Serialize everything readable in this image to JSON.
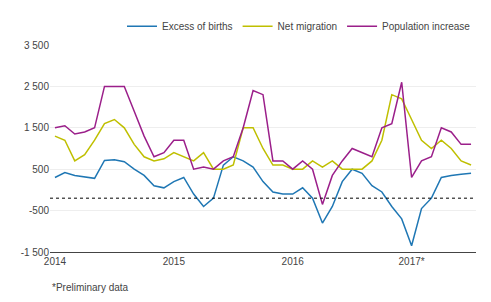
{
  "chart_data": {
    "type": "line",
    "categories": [
      "2014",
      null,
      null,
      null,
      null,
      null,
      null,
      null,
      null,
      null,
      null,
      null,
      "2015",
      null,
      null,
      null,
      null,
      null,
      null,
      null,
      null,
      null,
      null,
      null,
      "2016",
      null,
      null,
      null,
      null,
      null,
      null,
      null,
      null,
      null,
      null,
      null,
      "2017*",
      null,
      null,
      null,
      null,
      null,
      null
    ],
    "series": [
      {
        "name": "Excess of births",
        "color": "#1f77b4",
        "values": [
          300,
          420,
          350,
          310,
          280,
          710,
          730,
          680,
          500,
          350,
          100,
          50,
          200,
          300,
          -100,
          -400,
          -200,
          600,
          800,
          700,
          550,
          200,
          -50,
          -100,
          -100,
          50,
          -200,
          -800,
          -400,
          200,
          500,
          400,
          100,
          -50,
          -400,
          -700,
          -1350,
          -450,
          -200,
          300,
          350,
          380,
          400
        ]
      },
      {
        "name": "Net migration",
        "color": "#bfbf00",
        "values": [
          1300,
          1200,
          700,
          850,
          1200,
          1600,
          1700,
          1500,
          1100,
          800,
          700,
          750,
          900,
          800,
          700,
          900,
          500,
          500,
          600,
          1500,
          1500,
          1000,
          600,
          600,
          500,
          500,
          700,
          550,
          700,
          500,
          500,
          500,
          700,
          1200,
          2300,
          2200,
          1700,
          1200,
          1000,
          1200,
          1000,
          700,
          600
        ]
      },
      {
        "name": "Population increase",
        "color": "#9b1f8a",
        "values": [
          1500,
          1550,
          1350,
          1400,
          1500,
          2500,
          2500,
          2500,
          1900,
          1300,
          800,
          900,
          1200,
          1200,
          500,
          550,
          500,
          700,
          800,
          1500,
          2400,
          2300,
          700,
          700,
          500,
          700,
          500,
          -350,
          350,
          700,
          1000,
          900,
          800,
          1500,
          1600,
          2600,
          300,
          700,
          800,
          1500,
          1400,
          1100,
          1100
        ]
      }
    ],
    "reference_line": {
      "value": -200,
      "color": "#000000",
      "line_style": "dotted"
    },
    "ylim": [
      -1500,
      3500
    ],
    "yticks": [
      {
        "value": -1500,
        "label": "-1 500"
      },
      -500,
      500,
      {
        "value": 1500,
        "label": "1 500"
      },
      {
        "value": 2500,
        "label": "2 500"
      },
      {
        "value": 3500,
        "label": "3 500"
      }
    ],
    "grid": true,
    "legend": "upper right",
    "annotations": [
      "*Preliminary data"
    ]
  }
}
